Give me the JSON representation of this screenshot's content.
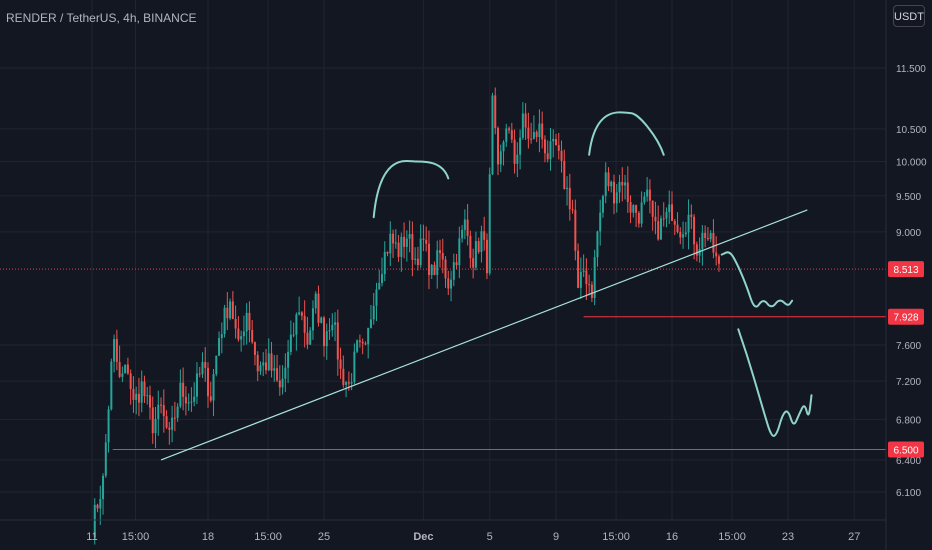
{
  "header": {
    "symbol_title": "RENDER / TetherUS, 4h, BINANCE",
    "currency": "USDT"
  },
  "colors": {
    "background": "#131722",
    "grid": "#1f2430",
    "axis_text": "#b2b5be",
    "up_candle": "#26a69a",
    "down_candle": "#ef5350",
    "trendline": "#a7e3dc",
    "drawing": "#8fd3cb",
    "price_line": "#f23645"
  },
  "chart_data": {
    "type": "candlestick",
    "title": "RENDER / TetherUS, 4h, BINANCE",
    "y_scale": "log",
    "y_ticks": [
      6.1,
      6.4,
      6.8,
      7.2,
      7.6,
      9.0,
      9.5,
      10.0,
      10.5,
      11.5
    ],
    "y_tick_labels": [
      "6.100",
      "6.400",
      "6.800",
      "7.200",
      "7.600",
      "9.000",
      "9.500",
      "10.000",
      "10.500",
      "11.500"
    ],
    "x_ticks": [
      "11",
      "15:00",
      "18",
      "15:00",
      "25",
      "Dec",
      "5",
      "9",
      "15:00",
      "16",
      "15:00",
      "23",
      "27"
    ],
    "x_tick_dates": [
      "2024-11-11",
      "2024-11-13 15:00",
      "2024-11-18",
      "2024-11-21 15:00",
      "2024-11-25",
      "2024-12-01",
      "2024-12-05",
      "2024-12-09",
      "2024-12-12 15:00",
      "2024-12-16",
      "2024-12-19 15:00",
      "2024-12-23",
      "2024-12-27"
    ],
    "price_labels": [
      {
        "value": 8.513,
        "label": "8.513",
        "style": "dotted"
      },
      {
        "value": 7.928,
        "label": "7.928",
        "style": "solid"
      },
      {
        "value": 6.5,
        "label": "6.500",
        "style": "solid"
      }
    ],
    "grid": true,
    "candle_path": [
      [
        "2024-11-11 00:00",
        5.8
      ],
      [
        "2024-11-11 16:00",
        6.2
      ],
      [
        "2024-11-12 04:00",
        7.35
      ],
      [
        "2024-11-12 08:00",
        7.6
      ],
      [
        "2024-11-12 16:00",
        7.2
      ],
      [
        "2024-11-13 04:00",
        7.35
      ],
      [
        "2024-11-13 12:00",
        6.95
      ],
      [
        "2024-11-14 00:00",
        7.15
      ],
      [
        "2024-11-14 16:00",
        6.75
      ],
      [
        "2024-11-15 04:00",
        6.9
      ],
      [
        "2024-11-15 16:00",
        6.6
      ],
      [
        "2024-11-16 08:00",
        7.1
      ],
      [
        "2024-11-17 00:00",
        7.0
      ],
      [
        "2024-11-17 16:00",
        7.35
      ],
      [
        "2024-11-18 04:00",
        7.05
      ],
      [
        "2024-11-18 16:00",
        7.7
      ],
      [
        "2024-11-19 08:00",
        8.15
      ],
      [
        "2024-11-19 20:00",
        7.55
      ],
      [
        "2024-11-20 08:00",
        8.0
      ],
      [
        "2024-11-21 00:00",
        7.35
      ],
      [
        "2024-11-21 16:00",
        7.4
      ],
      [
        "2024-11-22 08:00",
        7.1
      ],
      [
        "2024-11-23 00:00",
        7.6
      ],
      [
        "2024-11-23 12:00",
        8.05
      ],
      [
        "2024-11-24 00:00",
        7.65
      ],
      [
        "2024-11-24 12:00",
        8.1
      ],
      [
        "2024-11-25 00:00",
        7.7
      ],
      [
        "2024-11-25 12:00",
        7.95
      ],
      [
        "2024-11-26 00:00",
        7.3
      ],
      [
        "2024-11-26 12:00",
        7.15
      ],
      [
        "2024-11-27 00:00",
        7.55
      ],
      [
        "2024-11-27 12:00",
        7.5
      ],
      [
        "2024-11-28 00:00",
        8.2
      ],
      [
        "2024-11-28 12:00",
        8.6
      ],
      [
        "2024-11-29 00:00",
        8.9
      ],
      [
        "2024-11-29 12:00",
        8.75
      ],
      [
        "2024-11-30 00:00",
        8.95
      ],
      [
        "2024-11-30 12:00",
        8.65
      ],
      [
        "2024-12-01 00:00",
        8.85
      ],
      [
        "2024-12-01 12:00",
        8.45
      ],
      [
        "2024-12-02 00:00",
        8.7
      ],
      [
        "2024-12-02 12:00",
        8.35
      ],
      [
        "2024-12-03 00:00",
        8.7
      ],
      [
        "2024-12-03 12:00",
        9.1
      ],
      [
        "2024-12-04 00:00",
        8.65
      ],
      [
        "2024-12-04 12:00",
        8.95
      ],
      [
        "2024-12-04 20:00",
        8.6
      ],
      [
        "2024-12-05 04:00",
        10.9
      ],
      [
        "2024-12-05 12:00",
        9.8
      ],
      [
        "2024-12-06 00:00",
        10.6
      ],
      [
        "2024-12-06 12:00",
        10.0
      ],
      [
        "2024-12-07 00:00",
        10.6
      ],
      [
        "2024-12-07 12:00",
        10.3
      ],
      [
        "2024-12-08 00:00",
        10.5
      ],
      [
        "2024-12-08 12:00",
        10.1
      ],
      [
        "2024-12-09 00:00",
        10.2
      ],
      [
        "2024-12-09 12:00",
        9.7
      ],
      [
        "2024-12-10 00:00",
        9.3
      ],
      [
        "2024-12-10 08:00",
        8.2
      ],
      [
        "2024-12-10 16:00",
        8.5
      ],
      [
        "2024-12-11 04:00",
        8.25
      ],
      [
        "2024-12-11 12:00",
        9.0
      ],
      [
        "2024-12-12 00:00",
        9.75
      ],
      [
        "2024-12-12 12:00",
        9.55
      ],
      [
        "2024-12-13 00:00",
        9.75
      ],
      [
        "2024-12-13 12:00",
        9.35
      ],
      [
        "2024-12-14 00:00",
        9.25
      ],
      [
        "2024-12-14 12:00",
        9.45
      ],
      [
        "2024-12-15 00:00",
        9.0
      ],
      [
        "2024-12-15 12:00",
        9.15
      ],
      [
        "2024-12-16 00:00",
        9.3
      ],
      [
        "2024-12-16 12:00",
        9.05
      ],
      [
        "2024-12-17 00:00",
        9.2
      ],
      [
        "2024-12-17 12:00",
        8.8
      ],
      [
        "2024-12-18 00:00",
        9.0
      ],
      [
        "2024-12-18 12:00",
        8.75
      ],
      [
        "2024-12-18 20:00",
        8.5
      ]
    ],
    "trendline": {
      "from": [
        "2024-11-15 04:00",
        6.4
      ],
      "to": [
        "2024-12-24 04:00",
        9.3
      ]
    },
    "projection_path": [
      [
        "2024-12-19 00:00",
        8.7
      ],
      [
        "2024-12-19 12:00",
        8.75
      ],
      [
        "2024-12-20 00:00",
        8.55
      ],
      [
        "2024-12-20 12:00",
        8.3
      ],
      [
        "2024-12-21 00:00",
        8.0
      ],
      [
        "2024-12-21 12:00",
        8.15
      ],
      [
        "2024-12-22 00:00",
        8.02
      ],
      [
        "2024-12-22 12:00",
        8.15
      ],
      [
        "2024-12-23 00:00",
        8.05
      ],
      [
        "2024-12-23 06:00",
        8.12
      ]
    ],
    "projection_path_2": [
      [
        "2024-12-20 00:00",
        7.78
      ],
      [
        "2024-12-20 12:00",
        7.5
      ],
      [
        "2024-12-21 00:00",
        7.2
      ],
      [
        "2024-12-21 12:00",
        6.9
      ],
      [
        "2024-12-22 00:00",
        6.62
      ],
      [
        "2024-12-22 08:00",
        6.65
      ],
      [
        "2024-12-22 16:00",
        6.85
      ],
      [
        "2024-12-23 00:00",
        6.9
      ],
      [
        "2024-12-23 08:00",
        6.72
      ],
      [
        "2024-12-23 16:00",
        6.85
      ],
      [
        "2024-12-24 00:00",
        6.97
      ],
      [
        "2024-12-24 06:00",
        6.8
      ],
      [
        "2024-12-24 10:00",
        7.05
      ]
    ],
    "arc_left": {
      "from": [
        "2024-11-28 00:00",
        9.2
      ],
      "peak": [
        "2024-11-30 12:00",
        10.0
      ],
      "to": [
        "2024-12-02 12:00",
        9.75
      ]
    },
    "arc_right": {
      "from": [
        "2024-12-11 00:00",
        10.1
      ],
      "peak": [
        "2024-12-13 12:00",
        10.75
      ],
      "to": [
        "2024-12-15 12:00",
        10.1
      ]
    }
  }
}
